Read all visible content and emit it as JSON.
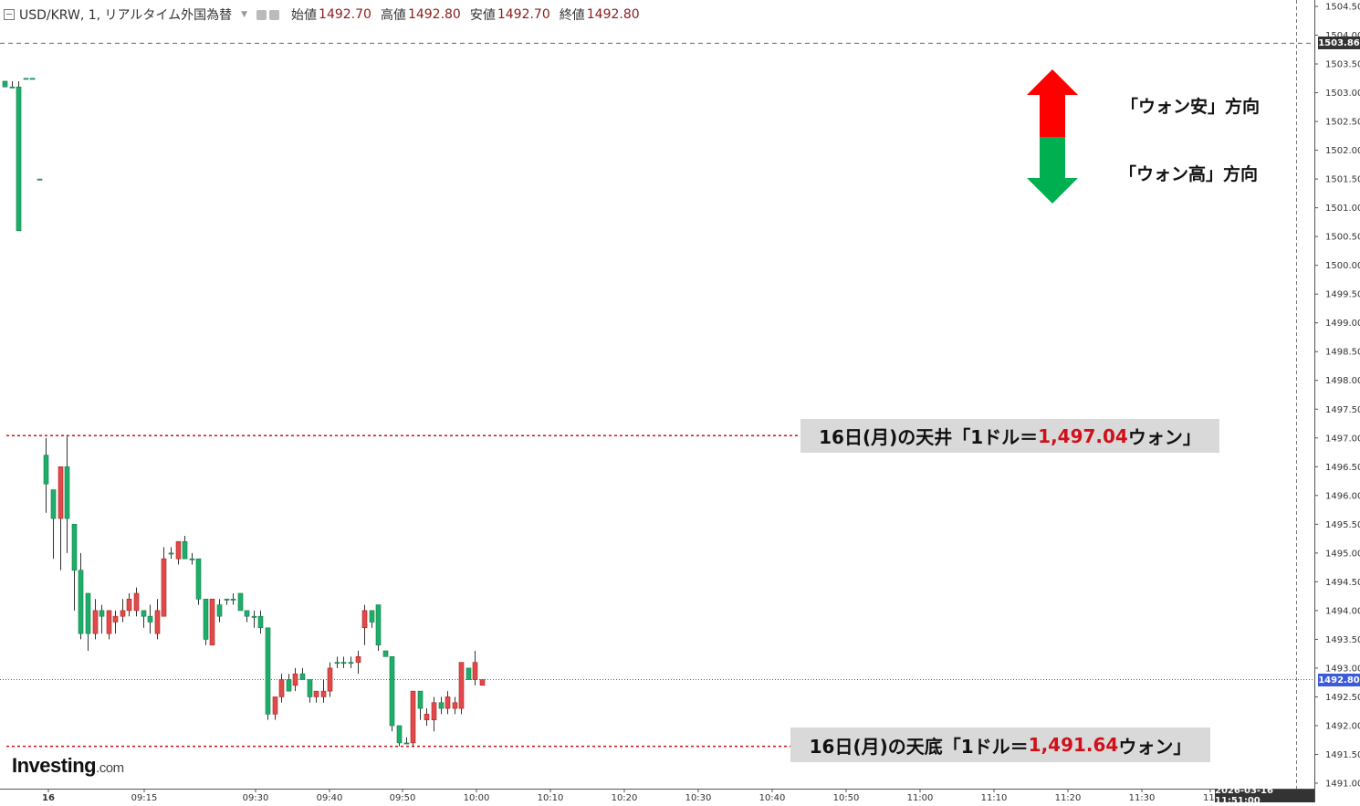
{
  "header": {
    "symbol": "USD/KRW, 1, リアルタイム外国為替",
    "open_label": "始値",
    "open_value": "1492.70",
    "high_label": "高値",
    "high_value": "1492.80",
    "low_label": "安値",
    "low_value": "1492.70",
    "close_label": "終値",
    "close_value": "1492.80"
  },
  "legend": {
    "up_text": "「ウォン安」方向",
    "down_text": "「ウォン高」方向",
    "up_color": "#ff0000",
    "down_color": "#00b050"
  },
  "annotations": {
    "top": {
      "prefix": "16日(月)の天井「1ドル＝",
      "value": "1,497.04",
      "suffix": "ウォン」",
      "level": 1497.04
    },
    "bottom": {
      "prefix": "16日(月)の天底「1ドル＝",
      "value": "1,491.64",
      "suffix": "ウォン」",
      "level": 1491.64
    }
  },
  "price_tags": {
    "upper": "1503.86",
    "current": "1492.80"
  },
  "time_tag": "2026-03-16 11:51:00",
  "logo": {
    "brand": "Investing",
    "suffix": ".com"
  },
  "chart_data": {
    "type": "candlestick",
    "ylim": [
      1491.0,
      1504.5
    ],
    "y_ticks": [
      "1491.00",
      "1491.50",
      "1492.00",
      "1492.50",
      "1493.00",
      "1493.50",
      "1494.00",
      "1494.50",
      "1495.00",
      "1495.50",
      "1496.00",
      "1496.50",
      "1497.00",
      "1497.50",
      "1498.00",
      "1498.50",
      "1499.00",
      "1499.50",
      "1500.00",
      "1500.50",
      "1501.00",
      "1501.50",
      "1502.00",
      "1502.50",
      "1503.00",
      "1503.50",
      "1504.00",
      "1504.50"
    ],
    "x_ticks": [
      "16",
      "09:15",
      "09:30",
      "09:40",
      "09:50",
      "10:00",
      "10:10",
      "10:20",
      "10:30",
      "10:40",
      "10:50",
      "11:00",
      "11:10",
      "11:20",
      "11:30",
      "11:"
    ],
    "horizontal_levels": [
      1503.86,
      1492.8,
      1497.04,
      1491.64
    ],
    "candles": [
      {
        "o": 1503.2,
        "h": 1503.2,
        "l": 1503.1,
        "c": 1503.1
      },
      {
        "o": 1503.1,
        "h": 1503.2,
        "l": 1503.1,
        "c": 1503.1
      },
      {
        "o": 1503.1,
        "h": 1503.2,
        "l": 1500.6,
        "c": 1500.6
      },
      {
        "o": 1503.25,
        "h": 1503.25,
        "l": 1503.25,
        "c": 1503.25
      },
      {
        "o": 1503.25,
        "h": 1503.25,
        "l": 1503.25,
        "c": 1503.25
      },
      {
        "o": 1501.5,
        "h": 1501.5,
        "l": 1501.5,
        "c": 1501.5
      },
      {
        "o": 1496.7,
        "h": 1497.0,
        "l": 1495.7,
        "c": 1496.2
      },
      {
        "o": 1496.1,
        "h": 1496.1,
        "l": 1494.9,
        "c": 1495.6
      },
      {
        "o": 1495.6,
        "h": 1496.5,
        "l": 1494.7,
        "c": 1496.5
      },
      {
        "o": 1496.5,
        "h": 1497.04,
        "l": 1495.0,
        "c": 1495.6
      },
      {
        "o": 1495.5,
        "h": 1495.5,
        "l": 1494.0,
        "c": 1494.7
      },
      {
        "o": 1494.7,
        "h": 1495.0,
        "l": 1493.5,
        "c": 1493.6
      },
      {
        "o": 1494.3,
        "h": 1494.3,
        "l": 1493.3,
        "c": 1493.6
      },
      {
        "o": 1493.6,
        "h": 1494.2,
        "l": 1493.5,
        "c": 1494.0
      },
      {
        "o": 1494.0,
        "h": 1494.1,
        "l": 1493.6,
        "c": 1493.9
      },
      {
        "o": 1493.6,
        "h": 1494.0,
        "l": 1493.5,
        "c": 1494.0
      },
      {
        "o": 1493.8,
        "h": 1494.0,
        "l": 1493.6,
        "c": 1493.9
      },
      {
        "o": 1493.9,
        "h": 1494.2,
        "l": 1493.8,
        "c": 1494.0
      },
      {
        "o": 1494.0,
        "h": 1494.3,
        "l": 1493.9,
        "c": 1494.2
      },
      {
        "o": 1494.0,
        "h": 1494.4,
        "l": 1493.9,
        "c": 1494.3
      },
      {
        "o": 1494.0,
        "h": 1494.0,
        "l": 1493.7,
        "c": 1493.9
      },
      {
        "o": 1493.9,
        "h": 1494.1,
        "l": 1493.6,
        "c": 1493.8
      },
      {
        "o": 1493.6,
        "h": 1494.2,
        "l": 1493.5,
        "c": 1494.0
      },
      {
        "o": 1493.9,
        "h": 1495.1,
        "l": 1493.9,
        "c": 1494.9
      },
      {
        "o": 1495.0,
        "h": 1495.1,
        "l": 1494.9,
        "c": 1495.0
      },
      {
        "o": 1494.9,
        "h": 1495.2,
        "l": 1494.8,
        "c": 1495.2
      },
      {
        "o": 1495.2,
        "h": 1495.3,
        "l": 1494.9,
        "c": 1494.9
      },
      {
        "o": 1494.9,
        "h": 1495.0,
        "l": 1494.8,
        "c": 1494.9
      },
      {
        "o": 1494.9,
        "h": 1494.9,
        "l": 1494.1,
        "c": 1494.2
      },
      {
        "o": 1494.2,
        "h": 1494.2,
        "l": 1493.4,
        "c": 1493.5
      },
      {
        "o": 1493.4,
        "h": 1494.2,
        "l": 1493.4,
        "c": 1494.2
      },
      {
        "o": 1494.1,
        "h": 1494.2,
        "l": 1493.8,
        "c": 1493.9
      },
      {
        "o": 1494.2,
        "h": 1494.2,
        "l": 1494.1,
        "c": 1494.2
      },
      {
        "o": 1494.2,
        "h": 1494.3,
        "l": 1494.1,
        "c": 1494.2
      },
      {
        "o": 1494.3,
        "h": 1494.3,
        "l": 1494.0,
        "c": 1494.0
      },
      {
        "o": 1494.0,
        "h": 1494.0,
        "l": 1493.8,
        "c": 1493.9
      },
      {
        "o": 1493.9,
        "h": 1494.0,
        "l": 1493.7,
        "c": 1493.9
      },
      {
        "o": 1493.9,
        "h": 1494.0,
        "l": 1493.6,
        "c": 1493.7
      },
      {
        "o": 1493.7,
        "h": 1493.7,
        "l": 1492.1,
        "c": 1492.2
      },
      {
        "o": 1492.2,
        "h": 1492.5,
        "l": 1492.1,
        "c": 1492.5
      },
      {
        "o": 1492.5,
        "h": 1492.9,
        "l": 1492.4,
        "c": 1492.8
      },
      {
        "o": 1492.8,
        "h": 1492.9,
        "l": 1492.6,
        "c": 1492.6
      },
      {
        "o": 1492.7,
        "h": 1493.0,
        "l": 1492.6,
        "c": 1492.9
      },
      {
        "o": 1492.9,
        "h": 1493.0,
        "l": 1492.8,
        "c": 1492.8
      },
      {
        "o": 1492.8,
        "h": 1492.8,
        "l": 1492.4,
        "c": 1492.5
      },
      {
        "o": 1492.5,
        "h": 1492.6,
        "l": 1492.4,
        "c": 1492.6
      },
      {
        "o": 1492.5,
        "h": 1492.8,
        "l": 1492.4,
        "c": 1492.6
      },
      {
        "o": 1492.6,
        "h": 1493.1,
        "l": 1492.5,
        "c": 1493.0
      },
      {
        "o": 1493.1,
        "h": 1493.2,
        "l": 1493.0,
        "c": 1493.1
      },
      {
        "o": 1493.1,
        "h": 1493.2,
        "l": 1493.0,
        "c": 1493.1
      },
      {
        "o": 1493.1,
        "h": 1493.2,
        "l": 1493.0,
        "c": 1493.1
      },
      {
        "o": 1493.1,
        "h": 1493.3,
        "l": 1492.9,
        "c": 1493.2
      },
      {
        "o": 1493.7,
        "h": 1494.1,
        "l": 1493.4,
        "c": 1494.0
      },
      {
        "o": 1494.0,
        "h": 1494.0,
        "l": 1493.7,
        "c": 1493.8
      },
      {
        "o": 1494.1,
        "h": 1494.1,
        "l": 1493.3,
        "c": 1493.4
      },
      {
        "o": 1493.3,
        "h": 1493.3,
        "l": 1493.2,
        "c": 1493.2
      },
      {
        "o": 1493.2,
        "h": 1493.2,
        "l": 1491.9,
        "c": 1492.0
      },
      {
        "o": 1492.0,
        "h": 1492.0,
        "l": 1491.64,
        "c": 1491.7
      },
      {
        "o": 1491.7,
        "h": 1491.8,
        "l": 1491.7,
        "c": 1491.7
      },
      {
        "o": 1491.7,
        "h": 1492.6,
        "l": 1491.64,
        "c": 1492.6
      },
      {
        "o": 1492.6,
        "h": 1492.6,
        "l": 1492.1,
        "c": 1492.3
      },
      {
        "o": 1492.1,
        "h": 1492.3,
        "l": 1492.0,
        "c": 1492.2
      },
      {
        "o": 1492.1,
        "h": 1492.5,
        "l": 1491.9,
        "c": 1492.4
      },
      {
        "o": 1492.4,
        "h": 1492.5,
        "l": 1492.2,
        "c": 1492.3
      },
      {
        "o": 1492.3,
        "h": 1492.6,
        "l": 1492.2,
        "c": 1492.5
      },
      {
        "o": 1492.3,
        "h": 1492.5,
        "l": 1492.2,
        "c": 1492.4
      },
      {
        "o": 1492.3,
        "h": 1493.1,
        "l": 1492.2,
        "c": 1493.1
      },
      {
        "o": 1493.0,
        "h": 1493.0,
        "l": 1492.8,
        "c": 1492.8
      },
      {
        "o": 1492.8,
        "h": 1493.3,
        "l": 1492.7,
        "c": 1493.1
      },
      {
        "o": 1492.7,
        "h": 1492.8,
        "l": 1492.7,
        "c": 1492.8
      }
    ]
  }
}
